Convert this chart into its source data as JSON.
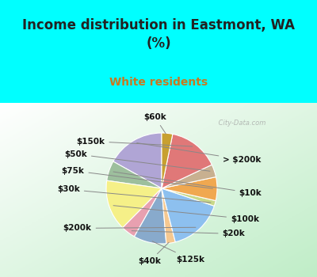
{
  "title": "Income distribution in Eastmont, WA\n(%)",
  "subtitle": "White residents",
  "watermark": " City-Data.com",
  "labels": [
    "> $200k",
    "$10k",
    "$100k",
    "$20k",
    "$125k",
    "$40k",
    "$200k",
    "$30k",
    "$75k",
    "$50k",
    "$150k",
    "$60k"
  ],
  "values": [
    16.0,
    5.5,
    14.0,
    4.0,
    9.0,
    2.5,
    15.0,
    1.5,
    6.5,
    3.5,
    14.0,
    3.0
  ],
  "colors": [
    "#b0a5d5",
    "#9dbf9d",
    "#f5f088",
    "#e8a0b0",
    "#88aacc",
    "#f5c890",
    "#8dc0ef",
    "#c8d888",
    "#f0a850",
    "#c8b090",
    "#e07878",
    "#c8a030"
  ],
  "bg_top": "#00ffff",
  "bg_chart_tl": "#f5f5f0",
  "bg_chart_br": "#b8e8c0",
  "title_color": "#222222",
  "subtitle_color": "#c87820",
  "startangle": 90,
  "label_fontsize": 7.5,
  "label_color": "#111111"
}
